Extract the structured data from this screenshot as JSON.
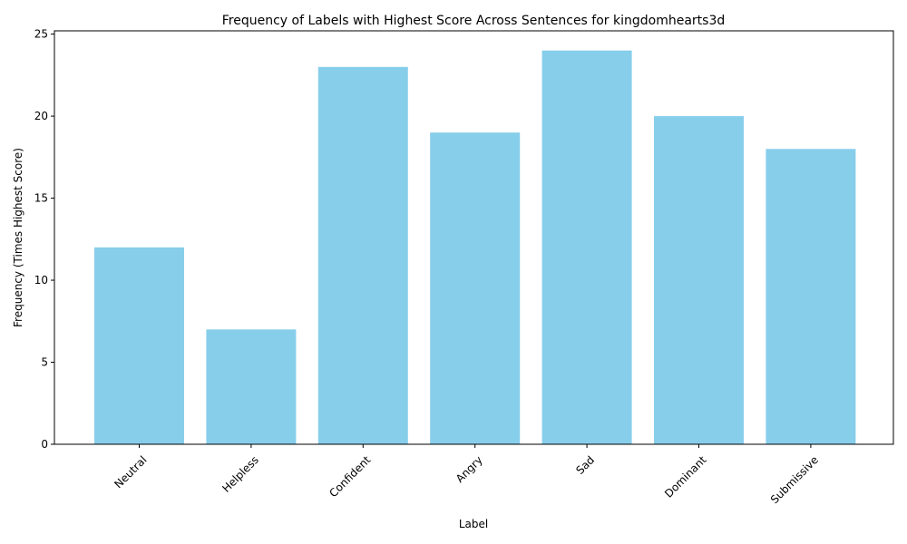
{
  "chart_data": {
    "type": "bar",
    "title": "Frequency of Labels with Highest Score Across Sentences for kingdomhearts3d",
    "xlabel": "Label",
    "ylabel": "Frequency (Times Highest Score)",
    "categories": [
      "Neutral",
      "Helpless",
      "Confident",
      "Angry",
      "Sad",
      "Dominant",
      "Submissive"
    ],
    "values": [
      12,
      7,
      23,
      19,
      24,
      20,
      18
    ],
    "ylim": [
      0,
      25.2
    ],
    "yticks": [
      0,
      5,
      10,
      15,
      20,
      25
    ],
    "bar_color": "#87ceeb",
    "grid": false,
    "legend": "none"
  }
}
